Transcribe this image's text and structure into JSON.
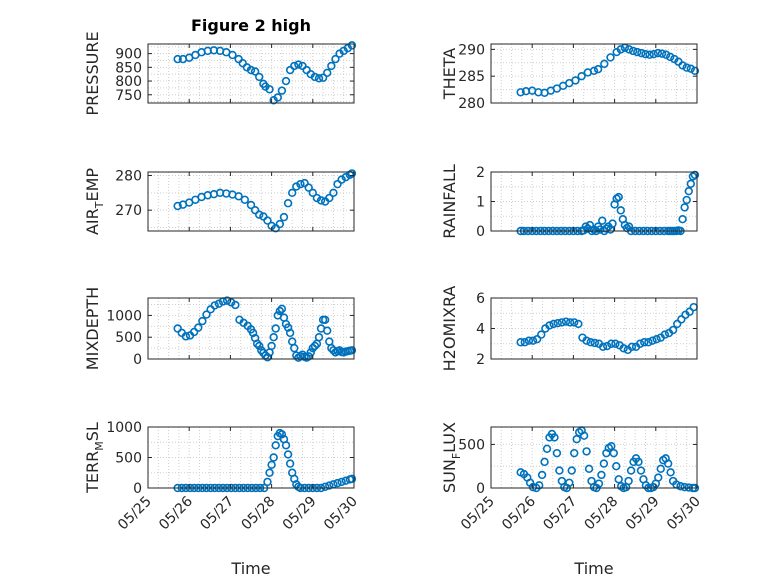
{
  "title": "Figure 2 high",
  "colors": {
    "marker": "#0072BD",
    "axis": "#262626",
    "grid": "#cfcfcf",
    "background": "#ffffff"
  },
  "chart_data": [
    {
      "type": "scatter",
      "ylabel": "PRESSURE",
      "title": "Figure 2 high",
      "xlim": [
        "05/25",
        "05/30"
      ],
      "ylim": [
        720,
        935
      ],
      "yticks": [
        900,
        850,
        800,
        750
      ],
      "grid": true,
      "x": [
        25.72,
        25.85,
        26.0,
        26.15,
        26.3,
        26.45,
        26.6,
        26.75,
        26.9,
        27.05,
        27.2,
        27.3,
        27.4,
        27.5,
        27.6,
        27.7,
        27.8,
        27.85,
        27.95,
        28.05,
        28.15,
        28.25,
        28.35,
        28.45,
        28.55,
        28.65,
        28.75,
        28.85,
        28.95,
        29.05,
        29.15,
        29.25,
        29.35,
        29.45,
        29.55,
        29.65,
        29.75,
        29.85,
        29.95
      ],
      "y": [
        880,
        880,
        885,
        895,
        905,
        910,
        912,
        910,
        905,
        895,
        880,
        865,
        850,
        840,
        835,
        815,
        790,
        780,
        770,
        730,
        740,
        765,
        800,
        840,
        855,
        860,
        855,
        840,
        825,
        815,
        810,
        812,
        830,
        855,
        880,
        900,
        910,
        920,
        930
      ]
    },
    {
      "type": "scatter",
      "ylabel": "THETA",
      "xlim": [
        "05/25",
        "05/30"
      ],
      "ylim": [
        280,
        291
      ],
      "yticks": [
        290,
        285,
        280
      ],
      "grid": true,
      "x": [
        25.72,
        25.85,
        26.0,
        26.15,
        26.3,
        26.45,
        26.6,
        26.75,
        26.9,
        27.05,
        27.2,
        27.35,
        27.5,
        27.6,
        27.75,
        27.9,
        28.05,
        28.15,
        28.25,
        28.35,
        28.45,
        28.55,
        28.65,
        28.75,
        28.85,
        28.95,
        29.05,
        29.15,
        29.25,
        29.35,
        29.45,
        29.55,
        29.65,
        29.75,
        29.85,
        29.95
      ],
      "y": [
        282,
        282.2,
        282.3,
        282,
        281.9,
        282.3,
        282.7,
        283.2,
        283.7,
        284.2,
        285,
        285.7,
        286,
        286.3,
        287.3,
        288.5,
        289.5,
        290,
        290.3,
        290,
        289.7,
        289.5,
        289.3,
        289.1,
        289,
        289.1,
        289.3,
        289.2,
        289,
        288.6,
        288.2,
        287.7,
        287,
        286.6,
        286.4,
        286
      ]
    },
    {
      "type": "scatter",
      "ylabel": "AIR_TEMP",
      "ylabel_parts": [
        "AIR",
        "T",
        "EMP"
      ],
      "xlim": [
        "05/25",
        "05/30"
      ],
      "ylim": [
        264,
        281
      ],
      "yticks": [
        280,
        270
      ],
      "grid": true,
      "x": [
        25.72,
        25.85,
        26.0,
        26.15,
        26.3,
        26.45,
        26.6,
        26.75,
        26.9,
        27.05,
        27.2,
        27.35,
        27.5,
        27.6,
        27.7,
        27.8,
        27.9,
        28.0,
        28.1,
        28.2,
        28.3,
        28.4,
        28.5,
        28.6,
        28.7,
        28.8,
        28.9,
        29.0,
        29.1,
        29.2,
        29.3,
        29.4,
        29.5,
        29.6,
        29.7,
        29.8,
        29.9,
        29.95
      ],
      "y": [
        271.2,
        271.6,
        272.2,
        273,
        273.8,
        274.3,
        274.6,
        275,
        274.8,
        274.5,
        274,
        273,
        271.5,
        270,
        268.7,
        268.2,
        267,
        265.5,
        264.8,
        266,
        268,
        272,
        275,
        276.8,
        277.5,
        277.8,
        276.5,
        275,
        273.5,
        272.8,
        272.5,
        273.5,
        275,
        277.5,
        278.8,
        279.5,
        280.2,
        280.6
      ]
    },
    {
      "type": "scatter",
      "ylabel": "RAINFALL",
      "xlim": [
        "05/25",
        "05/30"
      ],
      "ylim": [
        0,
        2
      ],
      "yticks": [
        2,
        1,
        0
      ],
      "grid": true,
      "x": [
        25.72,
        25.8,
        25.9,
        26.0,
        26.1,
        26.2,
        26.3,
        26.4,
        26.5,
        26.6,
        26.7,
        26.8,
        26.9,
        27.0,
        27.1,
        27.2,
        27.25,
        27.3,
        27.35,
        27.4,
        27.45,
        27.5,
        27.55,
        27.6,
        27.65,
        27.7,
        27.75,
        27.8,
        27.85,
        27.9,
        27.95,
        28.0,
        28.05,
        28.1,
        28.15,
        28.2,
        28.25,
        28.3,
        28.35,
        28.4,
        28.5,
        28.6,
        28.7,
        28.8,
        28.9,
        29.0,
        29.1,
        29.2,
        29.3,
        29.35,
        29.4,
        29.45,
        29.5,
        29.55,
        29.6,
        29.65,
        29.7,
        29.75,
        29.8,
        29.85,
        29.9,
        29.95
      ],
      "y": [
        0,
        0,
        0,
        0,
        0,
        0,
        0,
        0,
        0,
        0,
        0,
        0,
        0,
        0,
        0,
        0,
        0.02,
        0.15,
        0.08,
        0.2,
        0,
        0.05,
        0,
        0.15,
        0.05,
        0.35,
        0,
        0.08,
        0.15,
        0.05,
        0.25,
        0.9,
        1.1,
        1.15,
        0.7,
        0.4,
        0.2,
        0.1,
        0.15,
        0,
        0,
        0,
        0,
        0,
        0,
        0,
        0,
        0,
        0,
        0,
        0,
        0,
        0,
        0.02,
        0,
        0.4,
        0.8,
        1.05,
        1.35,
        1.6,
        1.85,
        1.9
      ]
    },
    {
      "type": "scatter",
      "ylabel": "MIXDEPTH",
      "xlim": [
        "05/25",
        "05/30"
      ],
      "ylim": [
        0,
        1400
      ],
      "yticks": [
        1000,
        500,
        0
      ],
      "grid": true,
      "x": [
        25.72,
        25.82,
        25.92,
        26.02,
        26.12,
        26.22,
        26.32,
        26.42,
        26.52,
        26.62,
        26.72,
        26.82,
        26.92,
        27.02,
        27.12,
        27.22,
        27.32,
        27.42,
        27.5,
        27.55,
        27.6,
        27.65,
        27.7,
        27.75,
        27.8,
        27.85,
        27.9,
        27.95,
        28.0,
        28.05,
        28.1,
        28.15,
        28.2,
        28.25,
        28.3,
        28.35,
        28.4,
        28.45,
        28.5,
        28.55,
        28.6,
        28.65,
        28.7,
        28.75,
        28.8,
        28.85,
        28.9,
        28.95,
        29.0,
        29.05,
        29.1,
        29.15,
        29.2,
        29.25,
        29.3,
        29.35,
        29.4,
        29.45,
        29.5,
        29.55,
        29.6,
        29.65,
        29.7,
        29.75,
        29.8,
        29.85,
        29.9,
        29.95
      ],
      "y": [
        700,
        600,
        520,
        540,
        620,
        720,
        870,
        1020,
        1140,
        1230,
        1270,
        1320,
        1340,
        1300,
        1240,
        900,
        830,
        760,
        680,
        600,
        480,
        350,
        300,
        200,
        140,
        80,
        40,
        150,
        300,
        500,
        700,
        1000,
        1100,
        1150,
        950,
        800,
        720,
        600,
        400,
        250,
        80,
        30,
        60,
        100,
        50,
        30,
        60,
        150,
        250,
        300,
        350,
        500,
        700,
        900,
        900,
        650,
        400,
        250,
        200,
        150,
        180,
        200,
        160,
        150,
        170,
        180,
        190,
        200
      ]
    },
    {
      "type": "scatter",
      "ylabel": "H2OMIXRA",
      "xlim": [
        "05/25",
        "05/30"
      ],
      "ylim": [
        2,
        6
      ],
      "yticks": [
        6,
        4,
        2
      ],
      "grid": true,
      "x": [
        25.72,
        25.82,
        25.92,
        26.02,
        26.12,
        26.22,
        26.32,
        26.42,
        26.52,
        26.62,
        26.72,
        26.82,
        26.92,
        27.02,
        27.12,
        27.22,
        27.32,
        27.42,
        27.52,
        27.62,
        27.72,
        27.82,
        27.92,
        28.02,
        28.12,
        28.22,
        28.32,
        28.42,
        28.52,
        28.62,
        28.72,
        28.82,
        28.92,
        29.02,
        29.12,
        29.22,
        29.32,
        29.42,
        29.52,
        29.62,
        29.72,
        29.82,
        29.92
      ],
      "y": [
        3.1,
        3.1,
        3.2,
        3.2,
        3.3,
        3.6,
        4.0,
        4.2,
        4.3,
        4.35,
        4.4,
        4.45,
        4.4,
        4.4,
        4.3,
        3.4,
        3.2,
        3.1,
        3.05,
        3.0,
        2.8,
        2.85,
        3.0,
        3.0,
        2.9,
        2.7,
        2.6,
        2.8,
        2.8,
        3.0,
        3.1,
        3.1,
        3.2,
        3.3,
        3.4,
        3.6,
        3.7,
        3.9,
        4.3,
        4.6,
        4.9,
        5.1,
        5.4
      ]
    },
    {
      "type": "scatter",
      "ylabel": "TERR_MSL",
      "ylabel_parts": [
        "TERR",
        "M",
        "SL"
      ],
      "xlim": [
        "05/25",
        "05/30"
      ],
      "ylim": [
        0,
        1000
      ],
      "yticks": [
        1000,
        500,
        0
      ],
      "grid": true,
      "x": [
        25.72,
        25.82,
        25.92,
        26.02,
        26.12,
        26.22,
        26.32,
        26.42,
        26.52,
        26.62,
        26.72,
        26.82,
        26.92,
        27.02,
        27.12,
        27.22,
        27.32,
        27.42,
        27.52,
        27.62,
        27.72,
        27.82,
        27.9,
        27.95,
        28.0,
        28.05,
        28.1,
        28.15,
        28.2,
        28.25,
        28.3,
        28.35,
        28.4,
        28.45,
        28.5,
        28.55,
        28.6,
        28.65,
        28.7,
        28.8,
        28.9,
        29.0,
        29.1,
        29.2,
        29.3,
        29.4,
        29.5,
        29.6,
        29.7,
        29.8,
        29.9,
        29.95
      ],
      "y": [
        0,
        0,
        0,
        0,
        0,
        0,
        0,
        0,
        0,
        0,
        0,
        0,
        0,
        0,
        0,
        0,
        0,
        0,
        0,
        0,
        0,
        0,
        100,
        250,
        380,
        500,
        700,
        850,
        900,
        880,
        800,
        700,
        550,
        400,
        250,
        150,
        60,
        20,
        0,
        0,
        0,
        0,
        0,
        0,
        20,
        40,
        60,
        80,
        100,
        120,
        140,
        150
      ]
    },
    {
      "type": "scatter",
      "ylabel": "SUN_FLUX",
      "ylabel_parts": [
        "SUN",
        "F",
        "LUX"
      ],
      "xlim": [
        "05/25",
        "05/30"
      ],
      "ylim": [
        0,
        700
      ],
      "yticks": [
        500,
        0
      ],
      "grid": true,
      "x": [
        25.72,
        25.8,
        25.88,
        25.95,
        26.02,
        26.1,
        26.17,
        26.24,
        26.3,
        26.36,
        26.42,
        26.48,
        26.54,
        26.6,
        26.66,
        26.72,
        26.78,
        26.84,
        26.9,
        26.96,
        27.02,
        27.08,
        27.14,
        27.2,
        27.26,
        27.32,
        27.38,
        27.44,
        27.5,
        27.56,
        27.62,
        27.68,
        27.74,
        27.8,
        27.86,
        27.92,
        27.98,
        28.04,
        28.1,
        28.16,
        28.22,
        28.28,
        28.34,
        28.4,
        28.46,
        28.52,
        28.58,
        28.64,
        28.7,
        28.76,
        28.82,
        28.88,
        28.94,
        29.0,
        29.06,
        29.12,
        29.18,
        29.24,
        29.3,
        29.36,
        29.42,
        29.5,
        29.6,
        29.7,
        29.8,
        29.9,
        29.95
      ],
      "y": [
        180,
        160,
        120,
        60,
        10,
        0,
        30,
        150,
        300,
        450,
        580,
        620,
        580,
        400,
        200,
        80,
        10,
        0,
        60,
        200,
        400,
        560,
        640,
        660,
        600,
        420,
        220,
        80,
        10,
        0,
        50,
        150,
        280,
        400,
        460,
        480,
        400,
        250,
        100,
        20,
        0,
        10,
        80,
        200,
        300,
        340,
        300,
        200,
        100,
        30,
        0,
        0,
        10,
        50,
        120,
        220,
        320,
        340,
        280,
        180,
        80,
        40,
        20,
        10,
        5,
        0,
        0
      ]
    }
  ],
  "x_tick_labels": [
    "05/25",
    "05/26",
    "05/27",
    "05/28",
    "05/29",
    "05/30"
  ],
  "xlabel": "Time"
}
